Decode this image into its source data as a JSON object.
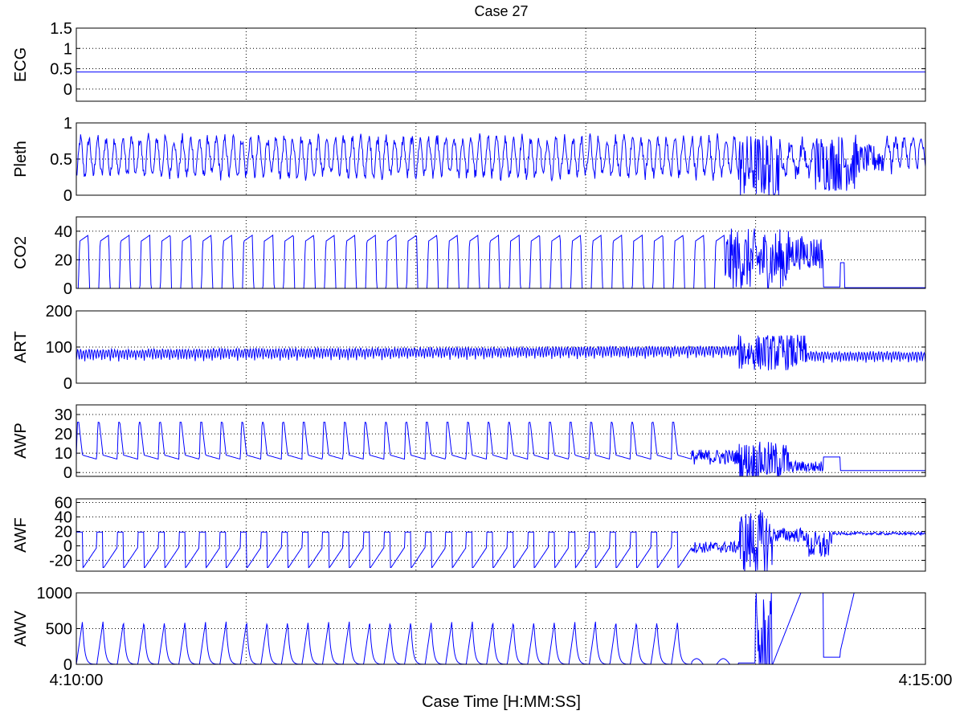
{
  "chart_data": [
    {
      "type": "line",
      "title": "Case 27",
      "ylabel": "ECG",
      "ylim": [
        -0.3,
        1.5
      ],
      "yticks": [
        "1.5",
        "1",
        "0.5",
        "0"
      ],
      "ytick_values": [
        1.5,
        1,
        0.5,
        0
      ],
      "grid": true,
      "color": "#0000ff",
      "description_series": "flat",
      "series": [
        {
          "values": [
            0.42,
            0.42
          ]
        }
      ]
    },
    {
      "type": "line",
      "ylabel": "Pleth",
      "ylim": [
        0,
        1
      ],
      "yticks": [
        "1",
        "0.5",
        "0"
      ],
      "ytick_values": [
        1,
        0.5,
        0
      ],
      "grid": true,
      "color": "#0000ff",
      "series": [
        {
          "pattern": "pleth"
        }
      ]
    },
    {
      "type": "line",
      "ylabel": "CO2",
      "ylim": [
        0,
        50
      ],
      "yticks": [
        "40",
        "20",
        "0"
      ],
      "ytick_values": [
        40,
        20,
        0
      ],
      "grid": true,
      "color": "#0000ff",
      "series": [
        {
          "pattern": "co2"
        }
      ]
    },
    {
      "type": "line",
      "ylabel": "ART",
      "ylim": [
        0,
        200
      ],
      "yticks": [
        "200",
        "100",
        "0"
      ],
      "ytick_values": [
        200,
        100,
        0
      ],
      "grid": true,
      "color": "#0000ff",
      "series": [
        {
          "pattern": "art"
        }
      ]
    },
    {
      "type": "line",
      "ylabel": "AWP",
      "ylim": [
        -2,
        35
      ],
      "yticks": [
        "30",
        "20",
        "10",
        "0"
      ],
      "ytick_values": [
        30,
        20,
        10,
        0
      ],
      "grid": true,
      "color": "#0000ff",
      "series": [
        {
          "pattern": "awp"
        }
      ]
    },
    {
      "type": "line",
      "ylabel": "AWF",
      "ylim": [
        -35,
        65
      ],
      "yticks": [
        "60",
        "40",
        "20",
        "0",
        "-20"
      ],
      "ytick_values": [
        60,
        40,
        20,
        0,
        -20
      ],
      "grid": true,
      "color": "#0000ff",
      "series": [
        {
          "pattern": "awf"
        }
      ]
    },
    {
      "type": "line",
      "ylabel": "AWV",
      "ylim": [
        0,
        1000
      ],
      "yticks": [
        "1000",
        "500",
        "0"
      ],
      "ytick_values": [
        1000,
        500,
        0
      ],
      "grid": true,
      "color": "#0000ff",
      "series": [
        {
          "pattern": "awv"
        }
      ]
    }
  ],
  "x_axis": {
    "label": "Case Time [H:MM:SS]",
    "start_label": "4:10:00",
    "end_label": "4:15:00",
    "start_seconds": 15000,
    "end_seconds": 15300,
    "grid_seconds": [
      15060,
      15120,
      15180,
      15240
    ]
  }
}
